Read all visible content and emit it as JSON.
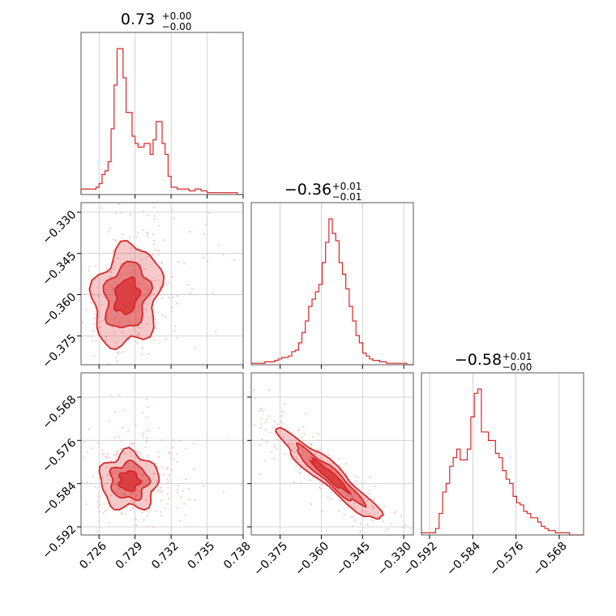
{
  "chart_data": {
    "type": "corner",
    "color": "#d62728",
    "point_color": "#f5b6b8",
    "grid": true,
    "parameters": [
      {
        "title": {
          "value": "0.73",
          "plus": "+0.00",
          "minus": "−0.00"
        },
        "range": [
          0.7245,
          0.738
        ],
        "ticks": [
          {
            "v": 0.726,
            "label": "0.726"
          },
          {
            "v": 0.729,
            "label": "0.729"
          },
          {
            "v": 0.732,
            "label": "0.732"
          },
          {
            "v": 0.735,
            "label": "0.735"
          },
          {
            "v": 0.738,
            "label": "0.738"
          }
        ]
      },
      {
        "title": {
          "value": "−0.36",
          "plus": "+0.01",
          "minus": "−0.01"
        },
        "range": [
          -0.3855,
          -0.3265
        ],
        "ticks": [
          {
            "v": -0.375,
            "label": "−0.375"
          },
          {
            "v": -0.36,
            "label": "−0.360"
          },
          {
            "v": -0.345,
            "label": "−0.345"
          },
          {
            "v": -0.33,
            "label": "−0.330"
          }
        ]
      },
      {
        "title": {
          "value": "−0.58",
          "plus": "+0.01",
          "minus": "−0.00"
        },
        "range": [
          -0.5935,
          -0.5635
        ],
        "ticks": [
          {
            "v": -0.592,
            "label": "−0.592"
          },
          {
            "v": -0.584,
            "label": "−0.584"
          },
          {
            "v": -0.576,
            "label": "−0.576"
          },
          {
            "v": -0.568,
            "label": "−0.568"
          }
        ]
      }
    ],
    "histograms": [
      {
        "param": 0,
        "counts": [
          3,
          3,
          3,
          3,
          3,
          4,
          6,
          11,
          13,
          18,
          36,
          60,
          80,
          80,
          64,
          45,
          45,
          32,
          28,
          26,
          26,
          28,
          28,
          22,
          30,
          40,
          40,
          28,
          22,
          10,
          4,
          4,
          3,
          3,
          3,
          3,
          2,
          2,
          3,
          3,
          2,
          2,
          1,
          1,
          1,
          1,
          1,
          1,
          1,
          1,
          1,
          1,
          0,
          0
        ]
      },
      {
        "param": 1,
        "counts": [
          1,
          1,
          1,
          1,
          2,
          2,
          2,
          3,
          4,
          5,
          5,
          6,
          9,
          10,
          15,
          22,
          30,
          40,
          45,
          50,
          55,
          70,
          84,
          100,
          90,
          85,
          70,
          62,
          52,
          40,
          30,
          20,
          15,
          8,
          6,
          4,
          3,
          3,
          2,
          2,
          1,
          1,
          1,
          1,
          1,
          1,
          0,
          0
        ]
      },
      {
        "param": 2,
        "counts": [
          1,
          1,
          1,
          1,
          3,
          10,
          20,
          24,
          32,
          36,
          40,
          35,
          35,
          40,
          55,
          66,
          68,
          48,
          48,
          44,
          44,
          38,
          36,
          30,
          26,
          24,
          18,
          15,
          14,
          11,
          10,
          8,
          8,
          6,
          4,
          3,
          2,
          2,
          1,
          1,
          1,
          1,
          0,
          0,
          0,
          0
        ]
      }
    ],
    "pairs": [
      {
        "x": 0,
        "y": 1,
        "center": [
          0.7283,
          -0.3605
        ],
        "spread": [
          0.0014,
          0.0092
        ],
        "corr": 0.2
      },
      {
        "x": 0,
        "y": 2,
        "center": [
          0.7285,
          -0.5835
        ],
        "spread": [
          0.0012,
          0.0026
        ],
        "corr": 0.0
      },
      {
        "x": 1,
        "y": 2,
        "center": [
          -0.357,
          -0.5825
        ],
        "spread": [
          0.0095,
          0.0042
        ],
        "corr": -0.95
      }
    ]
  }
}
